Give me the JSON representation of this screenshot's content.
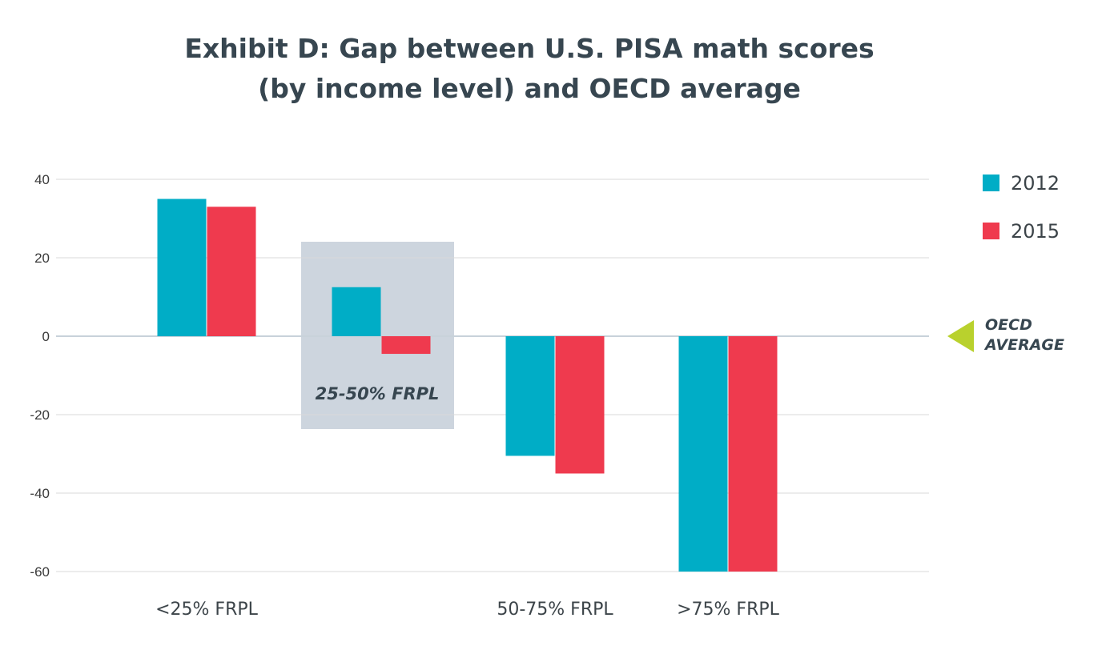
{
  "title": {
    "line1": "Exhibit D: Gap between U.S. PISA math scores",
    "line2": "(by income level) and OECD average"
  },
  "colors": {
    "series_2012": "#00adc6",
    "series_2015": "#ef3a4e",
    "highlight_box": "#cdd5de",
    "oecd_marker": "#b9d12d",
    "axis_text": "#3a3a3a",
    "title_text": "#374650",
    "gridline": "#d9d9d9"
  },
  "callouts": {
    "highlight_label": "25-50% FRPL",
    "oecd_label_line1": "OECD",
    "oecd_label_line2": "AVERAGE"
  },
  "chart_data": {
    "type": "bar",
    "categories": [
      "<25% FRPL",
      "25-50% FRPL",
      "50-75% FRPL",
      ">75% FRPL"
    ],
    "category_labels": [
      "<25% FRPL",
      "",
      "50-75% FRPL",
      ">75% FRPL"
    ],
    "highlighted_category": "25-50% FRPL",
    "series": [
      {
        "name": "2012",
        "values": [
          35,
          12.5,
          -30.5,
          -60
        ]
      },
      {
        "name": "2015",
        "values": [
          33,
          -4.5,
          -35,
          -60
        ]
      }
    ],
    "yticks": [
      40,
      20,
      0,
      -20,
      -40,
      -60
    ],
    "ylim": [
      -60,
      40
    ],
    "grid": true,
    "legend_position": "top-right",
    "title": "Exhibit D: Gap between U.S. PISA math scores (by income level) and OECD average",
    "xlabel": "",
    "ylabel": ""
  }
}
